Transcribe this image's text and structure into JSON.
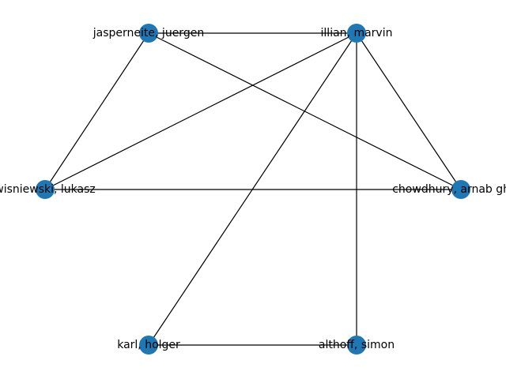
{
  "graph": {
    "nodes": [
      {
        "id": "jasperneite",
        "label": "jasperneite, juergen"
      },
      {
        "id": "illian",
        "label": "illian, marvin"
      },
      {
        "id": "wisniewski",
        "label": "wisniewski, lukasz"
      },
      {
        "id": "chowdhury",
        "label": "chowdhury, arnab ghosh"
      },
      {
        "id": "karl",
        "label": "karl, holger"
      },
      {
        "id": "althoff",
        "label": "althoff, simon"
      }
    ],
    "edges": [
      [
        "jasperneite",
        "illian"
      ],
      [
        "jasperneite",
        "wisniewski"
      ],
      [
        "jasperneite",
        "chowdhury"
      ],
      [
        "illian",
        "wisniewski"
      ],
      [
        "illian",
        "chowdhury"
      ],
      [
        "illian",
        "karl"
      ],
      [
        "illian",
        "althoff"
      ],
      [
        "wisniewski",
        "chowdhury"
      ],
      [
        "karl",
        "althoff"
      ]
    ],
    "node_color": "#1f77b4",
    "edge_color": "#000000"
  }
}
